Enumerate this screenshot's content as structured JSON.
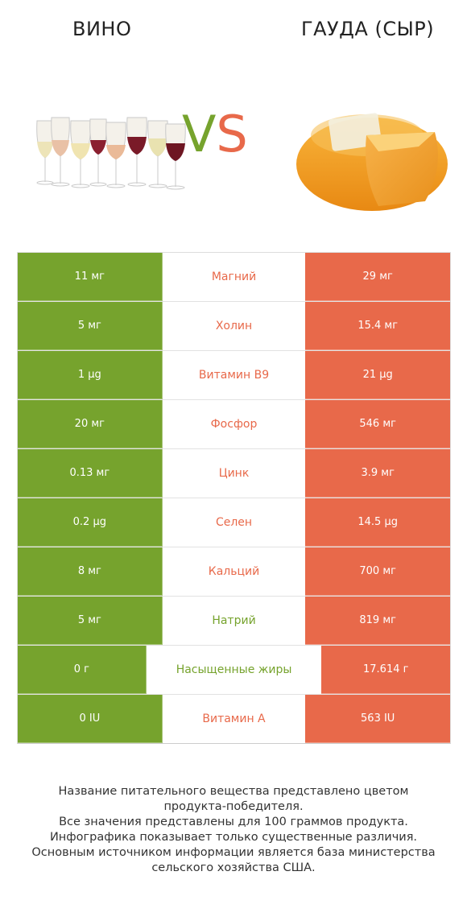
{
  "left_title": "ВИНО",
  "right_title": "ГАУДА (СЫР)",
  "vs": {
    "v": "V",
    "s": "S"
  },
  "colors": {
    "left": "#76a32d",
    "right": "#e8694a"
  },
  "rows": [
    {
      "left": "11 мг",
      "nutrient": "Магний",
      "right": "29 мг",
      "winner": "right"
    },
    {
      "left": "5 мг",
      "nutrient": "Холин",
      "right": "15.4 мг",
      "winner": "right"
    },
    {
      "left": "1 µg",
      "nutrient": "Витамин B9",
      "right": "21 µg",
      "winner": "right"
    },
    {
      "left": "20 мг",
      "nutrient": "Фосфор",
      "right": "546 мг",
      "winner": "right"
    },
    {
      "left": "0.13 мг",
      "nutrient": "Цинк",
      "right": "3.9 мг",
      "winner": "right"
    },
    {
      "left": "0.2 µg",
      "nutrient": "Селен",
      "right": "14.5 µg",
      "winner": "right"
    },
    {
      "left": "8 мг",
      "nutrient": "Кальций",
      "right": "700 мг",
      "winner": "right"
    },
    {
      "left": "5 мг",
      "nutrient": "Натрий",
      "right": "819 мг",
      "winner": "left"
    },
    {
      "left": "0 г",
      "nutrient": "Насыщенные жиры",
      "right": "17.614 г",
      "winner": "left"
    },
    {
      "left": "0 IU",
      "nutrient": "Витамин A",
      "right": "563 IU",
      "winner": "right"
    }
  ],
  "footnote": [
    "Название питательного вещества представлено цветом",
    "продукта-победителя.",
    "Все значения представлены для 100 граммов продукта.",
    "Инфографика показывает только существенные различия.",
    "Основным источником информации является база министерства",
    "сельского хозяйства США."
  ]
}
